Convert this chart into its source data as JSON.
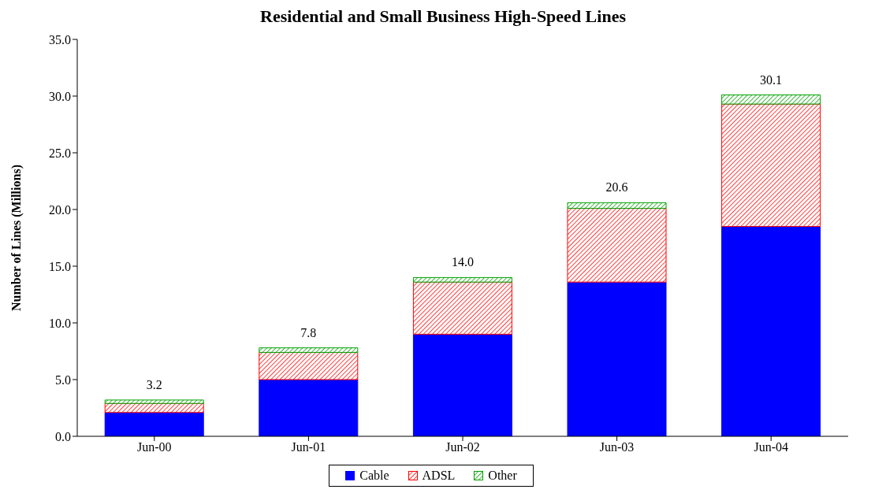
{
  "chart_data": {
    "type": "bar",
    "title": "Residential and Small Business High-Speed Lines",
    "ylabel": "Number of Lines (Millions)",
    "categories": [
      "Jun-00",
      "Jun-01",
      "Jun-02",
      "Jun-03",
      "Jun-04"
    ],
    "stacked": true,
    "series": [
      {
        "name": "Cable",
        "color": "#0000ff",
        "values": [
          2.1,
          5.0,
          9.0,
          13.6,
          18.5
        ]
      },
      {
        "name": "ADSL",
        "color": "#ff0000",
        "values": [
          0.8,
          2.4,
          4.6,
          6.5,
          10.8
        ]
      },
      {
        "name": "Other",
        "color": "#00a000",
        "values": [
          0.3,
          0.4,
          0.4,
          0.5,
          0.8
        ]
      }
    ],
    "totals": [
      "3.2",
      "7.8",
      "14.0",
      "20.6",
      "30.1"
    ],
    "ylim": [
      0,
      35
    ],
    "yticks": [
      {
        "value": 0,
        "label": "0.0"
      },
      {
        "value": 5,
        "label": "5.0"
      },
      {
        "value": 10,
        "label": "10.0"
      },
      {
        "value": 15,
        "label": "15.0"
      },
      {
        "value": 20,
        "label": "20.0"
      },
      {
        "value": 25,
        "label": "25.0"
      },
      {
        "value": 30,
        "label": "30.0"
      },
      {
        "value": 35,
        "label": "35.0"
      }
    ],
    "grid": false,
    "legend": "bottom"
  }
}
